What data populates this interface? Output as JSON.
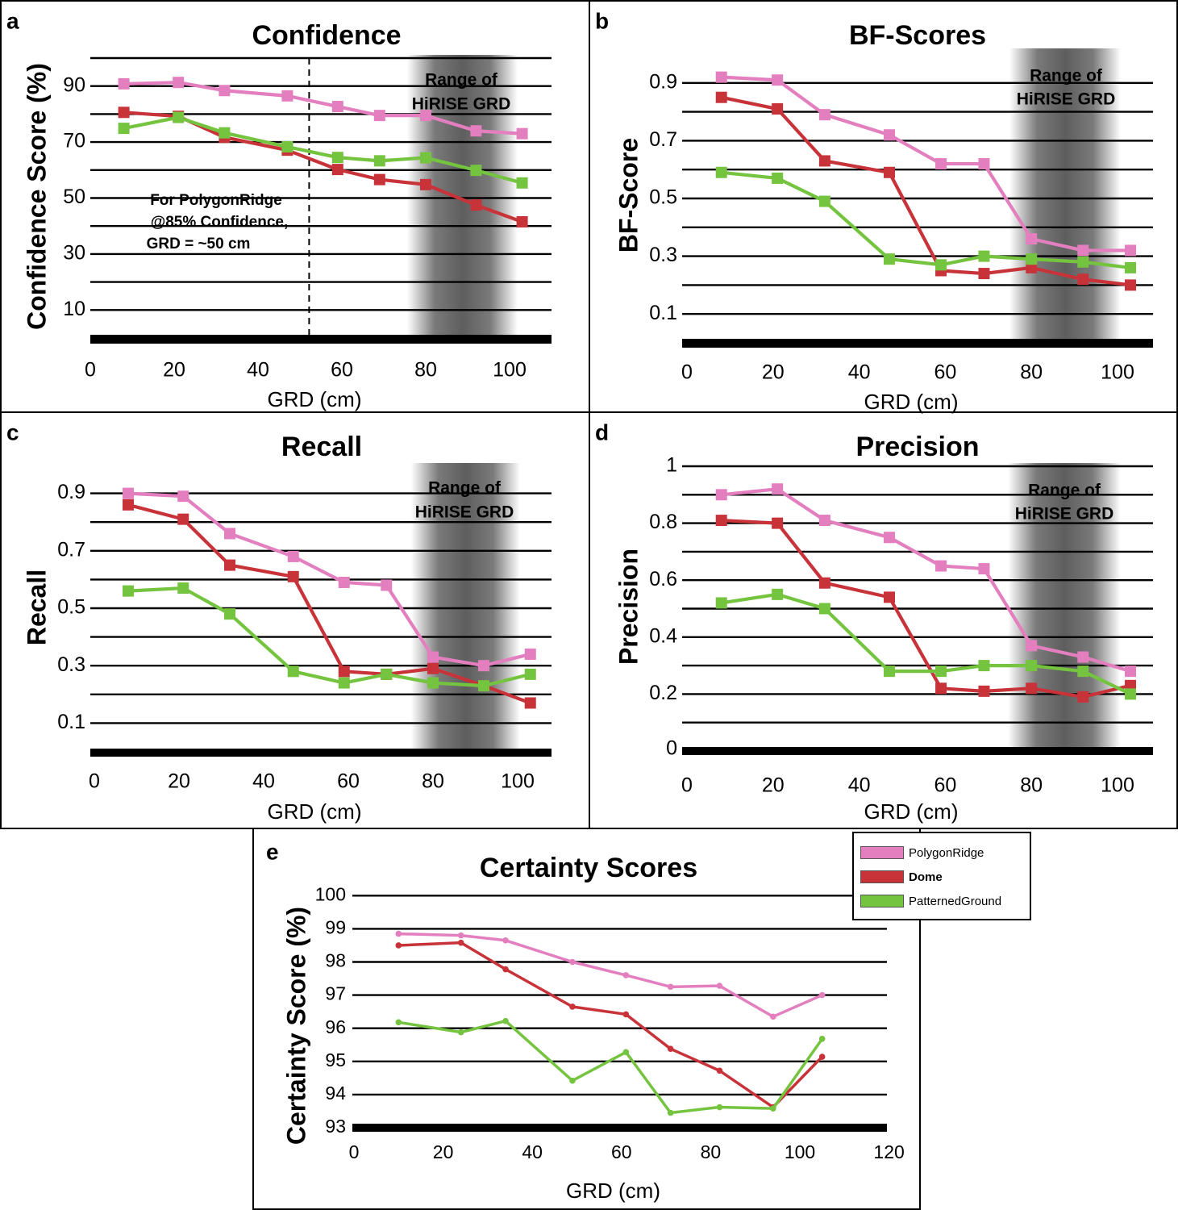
{
  "legend": {
    "items": [
      {
        "label": "PolygonRidge",
        "color": "#e37fbf",
        "bold": false
      },
      {
        "label": "Dome",
        "color": "#c8333a",
        "bold": true
      },
      {
        "label": "PatternedGround",
        "color": "#74c440",
        "bold": false
      }
    ]
  },
  "chart_data": [
    {
      "panel": "a",
      "type": "line",
      "title": "Confidence",
      "xlabel": "GRD (cm)",
      "ylabel": "Confidence Score (%)",
      "xlim": [
        0,
        110
      ],
      "ylim": [
        0,
        100
      ],
      "xticks": [
        0,
        20,
        40,
        60,
        80,
        100
      ],
      "yticks": [
        10,
        30,
        50,
        70,
        90
      ],
      "band_label": [
        "Range of",
        "HiRISE GRD"
      ],
      "band": [
        75,
        100
      ],
      "annotation": [
        "For PolygonRidge",
        "@85% Confidence,",
        "GRD = ~50 cm"
      ],
      "marker_line_x": 52,
      "x": [
        8,
        21,
        32,
        47,
        59,
        69,
        80,
        92,
        103
      ],
      "series": [
        {
          "name": "PolygonRidge",
          "color": "#e37fbf",
          "values": [
            90.8,
            91.3,
            88.4,
            86.5,
            82.7,
            79.5,
            79.5,
            74.0,
            73.0
          ]
        },
        {
          "name": "Dome",
          "color": "#c8333a",
          "values": [
            80.6,
            79.2,
            71.7,
            67.1,
            60.2,
            56.6,
            54.8,
            47.5,
            41.5
          ]
        },
        {
          "name": "PatternedGround",
          "color": "#74c440",
          "values": [
            74.9,
            78.8,
            73.3,
            68.3,
            64.5,
            63.3,
            64.4,
            59.9,
            55.4
          ]
        }
      ]
    },
    {
      "panel": "b",
      "type": "line",
      "title": "BF-Scores",
      "xlabel": "GRD (cm)",
      "ylabel": "BF-Score",
      "xlim": [
        0,
        110
      ],
      "ylim": [
        0,
        1.0
      ],
      "xticks": [
        0,
        20,
        40,
        60,
        80,
        100
      ],
      "yticks": [
        0.1,
        0.3,
        0.5,
        0.7,
        0.9
      ],
      "band_label": [
        "Range of",
        "HiRISE GRD"
      ],
      "band": [
        76,
        101
      ],
      "x": [
        8,
        21,
        32,
        47,
        59,
        69,
        80,
        92,
        103
      ],
      "series": [
        {
          "name": "PolygonRidge",
          "color": "#e37fbf",
          "values": [
            0.92,
            0.91,
            0.79,
            0.72,
            0.62,
            0.62,
            0.36,
            0.32,
            0.32
          ]
        },
        {
          "name": "Dome",
          "color": "#c8333a",
          "values": [
            0.85,
            0.81,
            0.63,
            0.59,
            0.25,
            0.24,
            0.26,
            0.22,
            0.2
          ]
        },
        {
          "name": "PatternedGround",
          "color": "#74c440",
          "values": [
            0.59,
            0.57,
            0.49,
            0.29,
            0.27,
            0.3,
            0.29,
            0.28,
            0.26
          ]
        }
      ]
    },
    {
      "panel": "c",
      "type": "line",
      "title": "Recall",
      "xlabel": "GRD (cm)",
      "ylabel": "Recall",
      "xlim": [
        0,
        110
      ],
      "ylim": [
        0,
        1.0
      ],
      "xticks": [
        0,
        20,
        40,
        60,
        80,
        100
      ],
      "yticks": [
        0.1,
        0.3,
        0.5,
        0.7,
        0.9
      ],
      "band_label": [
        "Range of",
        "HiRISE GRD"
      ],
      "band": [
        75,
        100
      ],
      "x": [
        8,
        21,
        32,
        47,
        59,
        69,
        80,
        92,
        103
      ],
      "series": [
        {
          "name": "PolygonRidge",
          "color": "#e37fbf",
          "values": [
            0.9,
            0.89,
            0.76,
            0.68,
            0.59,
            0.58,
            0.33,
            0.3,
            0.34
          ]
        },
        {
          "name": "Dome",
          "color": "#c8333a",
          "values": [
            0.86,
            0.81,
            0.65,
            0.61,
            0.28,
            0.27,
            0.29,
            0.23,
            0.17
          ]
        },
        {
          "name": "PatternedGround",
          "color": "#74c440",
          "values": [
            0.56,
            0.57,
            0.48,
            0.28,
            0.24,
            0.27,
            0.24,
            0.23,
            0.27
          ]
        }
      ]
    },
    {
      "panel": "d",
      "type": "line",
      "title": "Precision",
      "xlabel": "GRD (cm)",
      "ylabel": "Precision",
      "xlim": [
        0,
        110
      ],
      "ylim": [
        0,
        1.0
      ],
      "xticks": [
        0,
        20,
        40,
        60,
        80,
        100
      ],
      "yticks": [
        0,
        0.2,
        0.4,
        0.6,
        0.8,
        1
      ],
      "ytick_labels": [
        "0",
        "0.2",
        "0.4",
        "0.6",
        "0.8",
        "1"
      ],
      "band_label": [
        "Range of",
        "HiRISE GRD"
      ],
      "band": [
        76,
        101
      ],
      "x": [
        8,
        21,
        32,
        47,
        59,
        69,
        80,
        92,
        103
      ],
      "series": [
        {
          "name": "PolygonRidge",
          "color": "#e37fbf",
          "values": [
            0.9,
            0.92,
            0.81,
            0.75,
            0.65,
            0.64,
            0.37,
            0.33,
            0.28
          ]
        },
        {
          "name": "Dome",
          "color": "#c8333a",
          "values": [
            0.81,
            0.8,
            0.59,
            0.54,
            0.22,
            0.21,
            0.22,
            0.19,
            0.23
          ]
        },
        {
          "name": "PatternedGround",
          "color": "#74c440",
          "values": [
            0.52,
            0.55,
            0.5,
            0.28,
            0.28,
            0.3,
            0.3,
            0.28,
            0.2
          ]
        }
      ]
    },
    {
      "panel": "e",
      "type": "line",
      "title": "Certainty Scores",
      "xlabel": "GRD (cm)",
      "ylabel": "Certainty Score (%)",
      "xlim": [
        0,
        120
      ],
      "ylim": [
        93,
        100
      ],
      "xticks": [
        0,
        20,
        40,
        60,
        80,
        100,
        120
      ],
      "yticks": [
        93,
        94,
        95,
        96,
        97,
        98,
        99,
        100
      ],
      "x": [
        10,
        24,
        34,
        49,
        61,
        71,
        82,
        94,
        105
      ],
      "series": [
        {
          "name": "PolygonRidge",
          "color": "#e37fbf",
          "values": [
            98.85,
            98.8,
            98.65,
            98.0,
            97.6,
            97.25,
            97.28,
            96.35,
            97.0
          ]
        },
        {
          "name": "Dome",
          "color": "#c8333a",
          "values": [
            98.5,
            98.58,
            97.78,
            96.65,
            96.42,
            95.38,
            94.72,
            93.62,
            95.14
          ]
        },
        {
          "name": "PatternedGround",
          "color": "#74c440",
          "values": [
            96.18,
            95.88,
            96.22,
            94.42,
            95.28,
            93.45,
            93.62,
            93.58,
            95.68
          ]
        }
      ]
    }
  ]
}
